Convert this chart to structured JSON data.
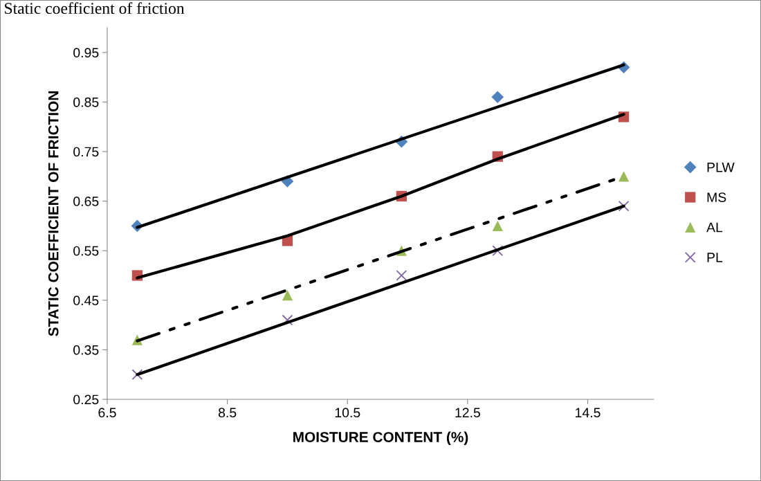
{
  "chart_data": {
    "type": "scatter",
    "title": "Static coefficient of friction",
    "xlabel": "MOISTURE CONTENT (%)",
    "ylabel": "STATIC COEFFICIENT OF FRICTION",
    "xlim": [
      6.5,
      15.6
    ],
    "xticks": [
      6.5,
      8.5,
      10.5,
      12.5,
      14.5
    ],
    "ylim": [
      0.25,
      1.0
    ],
    "yticks": [
      0.25,
      0.35,
      0.45,
      0.55,
      0.65,
      0.75,
      0.85,
      0.95
    ],
    "grid": false,
    "legend": "right",
    "series": [
      {
        "name": "PLW",
        "color": "#4f81bd",
        "marker": "diamond",
        "x": [
          7.0,
          9.5,
          11.4,
          13.0,
          15.1
        ],
        "values": [
          0.6,
          0.69,
          0.77,
          0.86,
          0.92
        ]
      },
      {
        "name": "MS",
        "color": "#c0504d",
        "marker": "square",
        "x": [
          7.0,
          9.5,
          11.4,
          13.0,
          15.1
        ],
        "values": [
          0.5,
          0.57,
          0.66,
          0.74,
          0.82
        ]
      },
      {
        "name": "AL",
        "color": "#9bbb59",
        "marker": "triangle",
        "x": [
          7.0,
          9.5,
          11.4,
          13.0,
          15.1
        ],
        "values": [
          0.37,
          0.46,
          0.55,
          0.6,
          0.7
        ]
      },
      {
        "name": "PL",
        "color": "#8064a2",
        "marker": "cross",
        "x": [
          7.0,
          9.5,
          11.4,
          13.0,
          15.1
        ],
        "values": [
          0.3,
          0.41,
          0.5,
          0.55,
          0.64
        ]
      },
      {
        "type": "line",
        "color": "#000000",
        "line_style": "solid",
        "x": [
          7.0,
          15.1
        ],
        "values": [
          0.597,
          0.925
        ]
      },
      {
        "type": "line",
        "color": "#000000",
        "line_style": "solid",
        "x": [
          7.0,
          9.5,
          11.4,
          13.0,
          15.1
        ],
        "values": [
          0.495,
          0.58,
          0.66,
          0.735,
          0.825
        ]
      },
      {
        "type": "line",
        "color": "#000000",
        "line_style": "dashed",
        "x": [
          7.0,
          15.1
        ],
        "values": [
          0.368,
          0.7
        ]
      },
      {
        "type": "line",
        "color": "#000000",
        "line_style": "solid",
        "x": [
          7.0,
          15.1
        ],
        "values": [
          0.3,
          0.64
        ]
      }
    ]
  }
}
